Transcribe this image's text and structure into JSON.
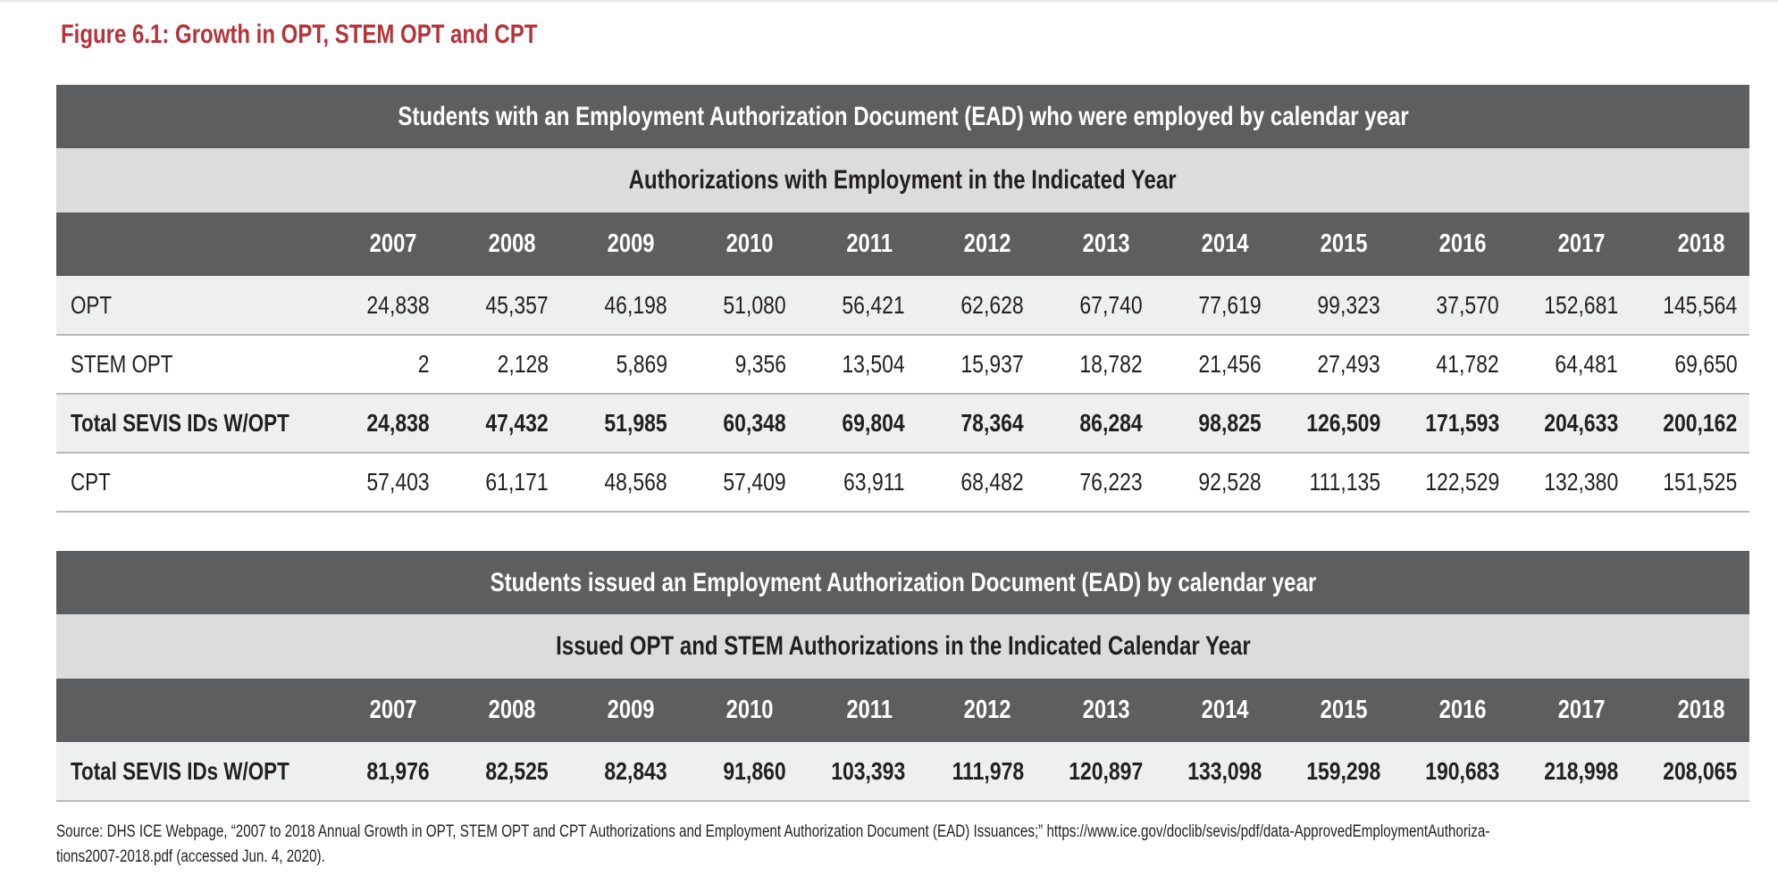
{
  "figure_title": "Figure 6.1:  Growth in OPT, STEM OPT and CPT",
  "colors": {
    "title_red": "#b5333a",
    "dark_band": "#5d5e60",
    "light_band": "#dcdcdc",
    "row_shade": "#eef0ef"
  },
  "table1": {
    "title": "Students with an Employment Authorization Document (EAD) who were employed by calendar year",
    "subtitle": "Authorizations with Employment in the Indicated Year",
    "years": [
      "2007",
      "2008",
      "2009",
      "2010",
      "2011",
      "2012",
      "2013",
      "2014",
      "2015",
      "2016",
      "2017",
      "2018"
    ],
    "rows": [
      {
        "label": "OPT",
        "values": [
          "24,838",
          "45,357",
          "46,198",
          "51,080",
          "56,421",
          "62,628",
          "67,740",
          "77,619",
          "99,323",
          "37,570",
          "152,681",
          "145,564"
        ]
      },
      {
        "label": "STEM OPT",
        "values": [
          "2",
          "2,128",
          "5,869",
          "9,356",
          "13,504",
          "15,937",
          "18,782",
          "21,456",
          "27,493",
          "41,782",
          "64,481",
          "69,650"
        ]
      },
      {
        "label": "Total SEVIS IDs W/OPT",
        "values": [
          "24,838",
          "47,432",
          "51,985",
          "60,348",
          "69,804",
          "78,364",
          "86,284",
          "98,825",
          "126,509",
          "171,593",
          "204,633",
          "200,162"
        ]
      },
      {
        "label": "CPT",
        "values": [
          "57,403",
          "61,171",
          "48,568",
          "57,409",
          "63,911",
          "68,482",
          "76,223",
          "92,528",
          "111,135",
          "122,529",
          "132,380",
          "151,525"
        ]
      }
    ]
  },
  "table2": {
    "title": "Students issued an Employment Authorization Document (EAD) by calendar year",
    "subtitle": "Issued OPT and STEM Authorizations in the Indicated Calendar Year",
    "years": [
      "2007",
      "2008",
      "2009",
      "2010",
      "2011",
      "2012",
      "2013",
      "2014",
      "2015",
      "2016",
      "2017",
      "2018"
    ],
    "rows": [
      {
        "label": "Total SEVIS IDs W/OPT",
        "values": [
          "81,976",
          "82,525",
          "82,843",
          "91,860",
          "103,393",
          "111,978",
          "120,897",
          "133,098",
          "159,298",
          "190,683",
          "218,998",
          "208,065"
        ]
      }
    ]
  },
  "source": {
    "line1": "Source:  DHS ICE Webpage, “2007 to 2018 Annual Growth in OPT, STEM OPT and CPT Authorizations and Employment Authorization Document (EAD) Issuances;” https://www.ice.gov/doclib/sevis/pdf/data-ApprovedEmploymentAuthoriza-",
    "line2": "tions2007-2018.pdf (accessed Jun. 4, 2020)."
  },
  "chart_data": {
    "type": "table",
    "title": "Figure 6.1:  Growth in OPT, STEM OPT and CPT",
    "tables": [
      {
        "title": "Students with an Employment Authorization Document (EAD) who were employed by calendar year",
        "subtitle": "Authorizations with Employment in the Indicated Year",
        "columns": [
          2007,
          2008,
          2009,
          2010,
          2011,
          2012,
          2013,
          2014,
          2015,
          2016,
          2017,
          2018
        ],
        "series": [
          {
            "name": "OPT",
            "values": [
              24838,
              45357,
              46198,
              51080,
              56421,
              62628,
              67740,
              77619,
              99323,
              37570,
              152681,
              145564
            ]
          },
          {
            "name": "STEM OPT",
            "values": [
              2,
              2128,
              5869,
              9356,
              13504,
              15937,
              18782,
              21456,
              27493,
              41782,
              64481,
              69650
            ]
          },
          {
            "name": "Total SEVIS IDs W/OPT",
            "values": [
              24838,
              47432,
              51985,
              60348,
              69804,
              78364,
              86284,
              98825,
              126509,
              171593,
              204633,
              200162
            ]
          },
          {
            "name": "CPT",
            "values": [
              57403,
              61171,
              48568,
              57409,
              63911,
              68482,
              76223,
              92528,
              111135,
              122529,
              132380,
              151525
            ]
          }
        ]
      },
      {
        "title": "Students issued an Employment Authorization Document (EAD) by calendar year",
        "subtitle": "Issued OPT and STEM Authorizations in the Indicated Calendar Year",
        "columns": [
          2007,
          2008,
          2009,
          2010,
          2011,
          2012,
          2013,
          2014,
          2015,
          2016,
          2017,
          2018
        ],
        "series": [
          {
            "name": "Total SEVIS IDs W/OPT",
            "values": [
              81976,
              82525,
              82843,
              91860,
              103393,
              111978,
              120897,
              133098,
              159298,
              190683,
              218998,
              208065
            ]
          }
        ]
      }
    ]
  }
}
